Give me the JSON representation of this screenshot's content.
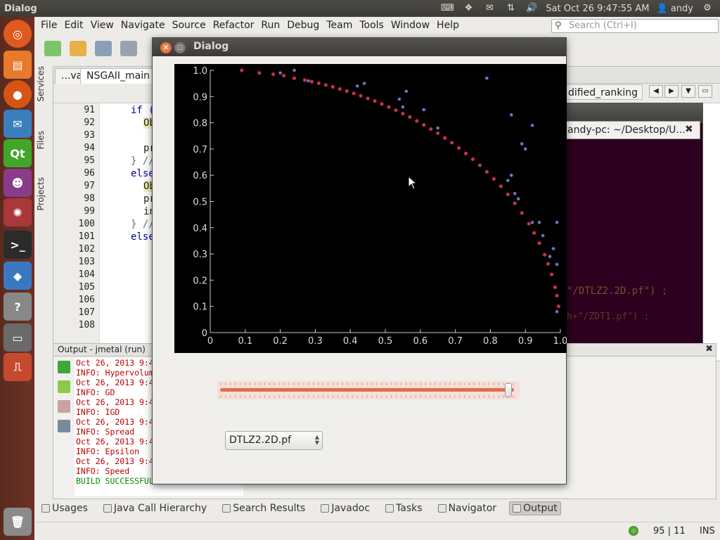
{
  "top_panel": {
    "app_title": "Dialog",
    "datetime": "Sat Oct 26  9:47:55 AM",
    "user": "andy"
  },
  "menubar": {
    "items": [
      "File",
      "Edit",
      "View",
      "Navigate",
      "Source",
      "Refactor",
      "Run",
      "Debug",
      "Team",
      "Tools",
      "Window",
      "Help"
    ],
    "search_placeholder": "Search (Ctrl+I)"
  },
  "side_tabs": [
    "Services",
    "Files",
    "Projects"
  ],
  "editor": {
    "tabs": [
      "...va",
      "NSGAII_main",
      "dified_ranking"
    ],
    "line_numbers": [
      "91",
      "92",
      "93",
      "94",
      "95",
      "96",
      "97",
      "98",
      "99",
      "100",
      "101",
      "102",
      "103",
      "104",
      "105",
      "106",
      "107",
      "108"
    ],
    "code_lines": [
      "if (a",
      "Obj",
      "",
      "pro",
      "} //",
      "else",
      "Obj",
      "pro",
      "ind",
      "} //",
      "else",
      "",
      "",
      "",
      "",
      "",
      "",
      ""
    ]
  },
  "terminal": {
    "title": "andy-pc: ~/Desktop/U...",
    "code_line_1": "\"/DTLZ2.2D.pf\") ;",
    "code_line_2": "h+\"/ZDT1.pf\") ;"
  },
  "output": {
    "title": "Output - jmetal (run)",
    "lines": [
      {
        "text": "Oct 26, 2013 9:4",
        "kind": "log"
      },
      {
        "text": "INFO: Hypervolum",
        "kind": "log"
      },
      {
        "text": "Oct 26, 2013 9:4",
        "kind": "log"
      },
      {
        "text": "INFO: GD",
        "kind": "log"
      },
      {
        "text": "Oct 26, 2013 9:4",
        "kind": "log"
      },
      {
        "text": "INFO: IGD",
        "kind": "log"
      },
      {
        "text": "Oct 26, 2013 9:4",
        "kind": "log"
      },
      {
        "text": "INFO: Spread",
        "kind": "log"
      },
      {
        "text": "Oct 26, 2013 9:4",
        "kind": "log"
      },
      {
        "text": "INFO: Epsilon",
        "kind": "log"
      },
      {
        "text": "Oct 26, 2013 9:4",
        "kind": "log"
      },
      {
        "text": "INFO: Speed",
        "kind": "log"
      },
      {
        "text": "BUILD SUCCESSFUL",
        "kind": "success"
      }
    ]
  },
  "bottom_tabs": [
    "Usages",
    "Java Call Hierarchy",
    "Search Results",
    "Javadoc",
    "Tasks",
    "Navigator",
    "Output"
  ],
  "status_bar": {
    "position": "95 | 11",
    "mode": "INS"
  },
  "dialog": {
    "title": "Dialog",
    "slider_value_fraction": 0.99,
    "combo_value": "DTLZ2.2D.pf"
  },
  "chart_data": {
    "type": "scatter",
    "xlim": [
      0,
      1
    ],
    "ylim": [
      0,
      1
    ],
    "x_ticks": [
      "0",
      "0.1",
      "0.2",
      "0.3",
      "0.4",
      "0.5",
      "0.6",
      "0.7",
      "0.8",
      "0.9",
      "1.0"
    ],
    "y_ticks": [
      "0",
      "0.1",
      "0.2",
      "0.3",
      "0.4",
      "0.5",
      "0.6",
      "0.7",
      "0.8",
      "0.9",
      "1.0"
    ],
    "series": [
      {
        "color": "#c8304a",
        "points": [
          [
            0.09,
            1.0
          ],
          [
            0.14,
            0.99
          ],
          [
            0.18,
            0.985
          ],
          [
            0.21,
            0.98
          ],
          [
            0.24,
            0.97
          ],
          [
            0.27,
            0.963
          ],
          [
            0.29,
            0.957
          ],
          [
            0.31,
            0.951
          ],
          [
            0.33,
            0.944
          ],
          [
            0.35,
            0.937
          ],
          [
            0.37,
            0.929
          ],
          [
            0.39,
            0.921
          ],
          [
            0.41,
            0.912
          ],
          [
            0.43,
            0.903
          ],
          [
            0.45,
            0.893
          ],
          [
            0.47,
            0.883
          ],
          [
            0.49,
            0.872
          ],
          [
            0.51,
            0.86
          ],
          [
            0.53,
            0.848
          ],
          [
            0.55,
            0.835
          ],
          [
            0.57,
            0.822
          ],
          [
            0.59,
            0.807
          ],
          [
            0.61,
            0.792
          ],
          [
            0.63,
            0.776
          ],
          [
            0.65,
            0.76
          ],
          [
            0.67,
            0.742
          ],
          [
            0.69,
            0.724
          ],
          [
            0.71,
            0.704
          ],
          [
            0.73,
            0.683
          ],
          [
            0.75,
            0.661
          ],
          [
            0.77,
            0.638
          ],
          [
            0.79,
            0.613
          ],
          [
            0.81,
            0.586
          ],
          [
            0.83,
            0.558
          ],
          [
            0.85,
            0.527
          ],
          [
            0.87,
            0.493
          ],
          [
            0.89,
            0.456
          ],
          [
            0.91,
            0.415
          ],
          [
            0.925,
            0.38
          ],
          [
            0.94,
            0.341
          ],
          [
            0.955,
            0.297
          ],
          [
            0.965,
            0.262
          ],
          [
            0.975,
            0.222
          ],
          [
            0.985,
            0.173
          ],
          [
            0.99,
            0.141
          ],
          [
            0.995,
            0.1
          ]
        ]
      },
      {
        "color": "#6e74c4",
        "points": [
          [
            0.2,
            0.99
          ],
          [
            0.24,
            1.0
          ],
          [
            0.28,
            0.96
          ],
          [
            0.42,
            0.94
          ],
          [
            0.44,
            0.95
          ],
          [
            0.54,
            0.89
          ],
          [
            0.55,
            0.86
          ],
          [
            0.56,
            0.92
          ],
          [
            0.61,
            0.85
          ],
          [
            0.65,
            0.78
          ],
          [
            0.79,
            0.97
          ],
          [
            0.86,
            0.83
          ],
          [
            0.89,
            0.72
          ],
          [
            0.9,
            0.7
          ],
          [
            0.92,
            0.79
          ],
          [
            0.86,
            0.6
          ],
          [
            0.85,
            0.58
          ],
          [
            0.87,
            0.53
          ],
          [
            0.88,
            0.51
          ],
          [
            0.92,
            0.42
          ],
          [
            0.94,
            0.42
          ],
          [
            0.95,
            0.37
          ],
          [
            0.99,
            0.42
          ],
          [
            0.98,
            0.32
          ],
          [
            0.97,
            0.29
          ],
          [
            0.99,
            0.26
          ],
          [
            0.99,
            0.08
          ]
        ]
      }
    ]
  }
}
